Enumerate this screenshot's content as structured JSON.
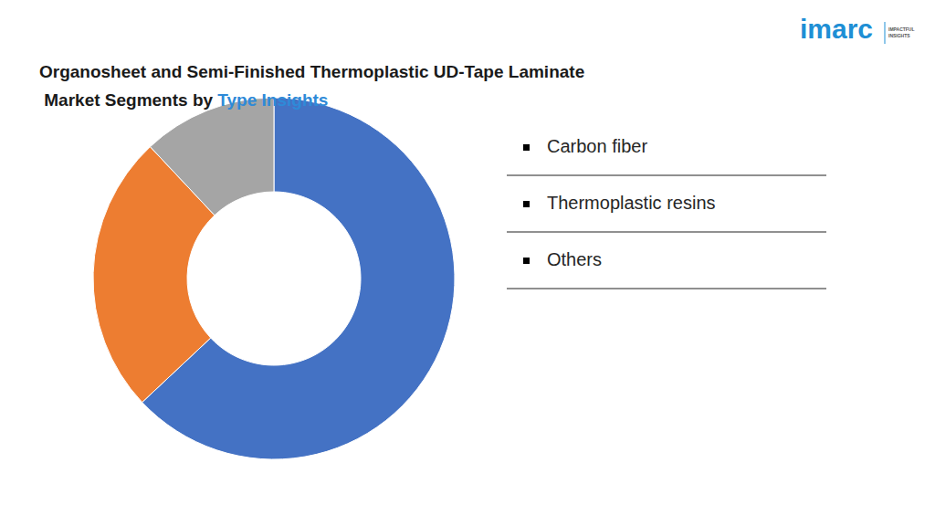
{
  "chart_data": {
    "type": "pie",
    "donut": true,
    "title": "Organosheet and Semi-Finished Thermoplastic UD-Tape Laminate Market Segments by Type Insights",
    "title_highlight": "Type Insights",
    "logo": {
      "text": "imarc",
      "tagline": "IMPACTFUL INSIGHTS"
    },
    "categories": [
      "Carbon fiber",
      "Thermoplastic resins",
      "Others"
    ],
    "values": [
      63,
      25,
      12
    ],
    "colors": [
      "#4472c4",
      "#ed7d31",
      "#a5a5a5"
    ],
    "data_labels": false
  }
}
